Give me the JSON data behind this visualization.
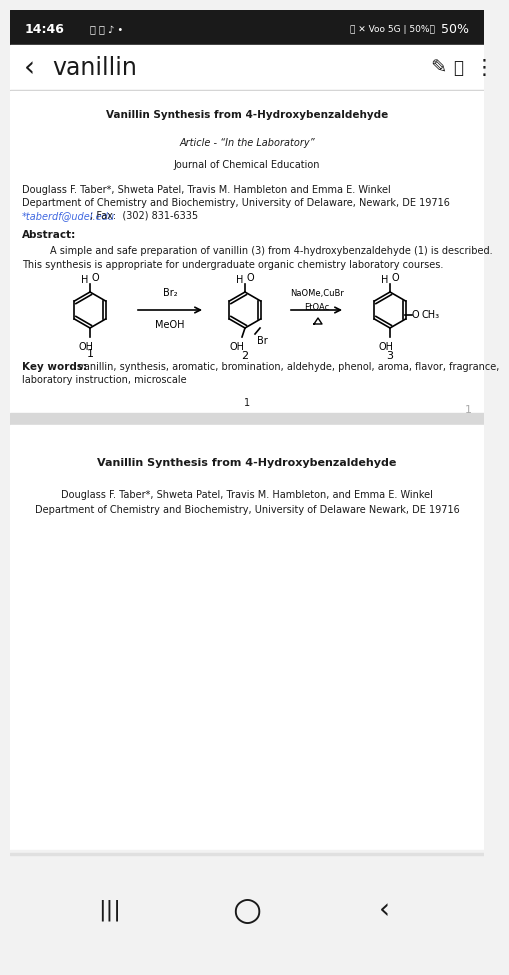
{
  "bg_color": "#f2f2f2",
  "white": "#ffffff",
  "black": "#1a1a1a",
  "blue_link": "#4169e1",
  "gray_bar": "#d0d0d0",
  "status_bar_text": "14:46",
  "status_bar_right": "50%",
  "nav_title": "vanillin",
  "paper_title": "Vanillin Synthesis from 4-Hydroxybenzaldehyde",
  "article_type": "Article - “In the Laboratory”",
  "journal": "Journal of Chemical Education",
  "authors": "Douglass F. Taber*, Shweta Patel, Travis M. Hambleton and Emma E. Winkel",
  "dept": "Department of Chemistry and Biochemistry, University of Delaware, Newark, DE 19716",
  "email_link": "*taberdf@udel.edu",
  "fax": "; Fax:  (302) 831-6335",
  "abstract_label": "Abstract:",
  "abstract_text1": "A simple and safe preparation of vanillin (3) from 4-hydroxybenzaldehyde (1) is described.",
  "abstract_text2": "This synthesis is appropriate for undergraduate organic chemistry laboratory courses.",
  "keywords_label": "Key words:",
  "keywords_text1": " vanillin, synthesis, aromatic, bromination, aldehyde, phenol, aroma, flavor, fragrance,",
  "keywords_text2": "laboratory instruction, microscale",
  "page_num": "1",
  "scroll_num": "1",
  "paper_title2": "Vanillin Synthesis from 4-Hydroxybenzaldehyde",
  "authors2": "Douglass F. Taber*, Shweta Patel, Travis M. Hambleton, and Emma E. Winkel",
  "dept2": "Department of Chemistry and Biochemistry, University of Delaware Newark, DE 19716"
}
